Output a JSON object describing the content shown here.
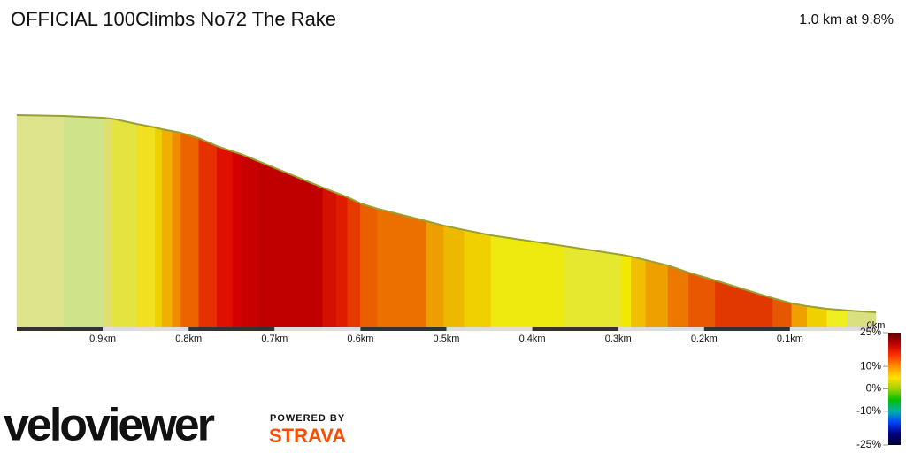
{
  "chart_data": {
    "type": "gradient-profile",
    "title": "OFFICIAL 100Climbs No72 The Rake",
    "subtitle": "1.0 km at 9.8%",
    "x": [
      1.0,
      0.945,
      0.899,
      0.889,
      0.86,
      0.839,
      0.831,
      0.819,
      0.809,
      0.788,
      0.767,
      0.749,
      0.739,
      0.719,
      0.644,
      0.628,
      0.615,
      0.6,
      0.58,
      0.523,
      0.503,
      0.479,
      0.448,
      0.363,
      0.296,
      0.285,
      0.268,
      0.242,
      0.218,
      0.187,
      0.12,
      0.098,
      0.08,
      0.057,
      0.033,
      0
    ],
    "y": [
      92.2,
      91.8,
      90.9,
      90.5,
      88.0,
      86.4,
      85.6,
      84.7,
      83.9,
      81.4,
      77.7,
      75.2,
      74.0,
      70.7,
      58.3,
      55.8,
      53.8,
      50.9,
      48.4,
      42.6,
      40.5,
      38.5,
      36.0,
      31.0,
      26.9,
      26.1,
      24.4,
      21.9,
      18.6,
      14.9,
      6.6,
      4.2,
      2.9,
      1.7,
      0.9,
      0
    ],
    "band_colors": [
      "#dde48c",
      "#cfe38a",
      "#dde070",
      "#e3e440",
      "#f0e020",
      "#f0d000",
      "#f0b000",
      "#f08c00",
      "#ec6400",
      "#e63000",
      "#e01000",
      "#d40000",
      "#c80000",
      "#c00000",
      "#d41000",
      "#e01c00",
      "#e63a00",
      "#ea6000",
      "#ec7000",
      "#eca000",
      "#eeb800",
      "#f0d000",
      "#eeea10",
      "#e6e830",
      "#f2e800",
      "#f0c000",
      "#eea000",
      "#ec7800",
      "#e85800",
      "#e03800",
      "#e65800",
      "#eea000",
      "#f0d000",
      "#eeee20",
      "#d8e080"
    ],
    "xlim": [
      1.0,
      0
    ],
    "ylim": [
      -7,
      92.2
    ],
    "xticks": [
      {
        "value": 0.9,
        "label": "0.9km"
      },
      {
        "value": 0.8,
        "label": "0.8km"
      },
      {
        "value": 0.7,
        "label": "0.7km"
      },
      {
        "value": 0.6,
        "label": "0.6km"
      },
      {
        "value": 0.5,
        "label": "0.5km"
      },
      {
        "value": 0.4,
        "label": "0.4km"
      },
      {
        "value": 0.3,
        "label": "0.3km"
      },
      {
        "value": 0.2,
        "label": "0.2km"
      },
      {
        "value": 0.1,
        "label": "0.1km"
      },
      {
        "value": 0,
        "label": "0km"
      }
    ],
    "colorbar": {
      "lim": [
        -25,
        25
      ],
      "ticks": [
        {
          "value": 25,
          "label": "25%"
        },
        {
          "value": 10,
          "label": "10%"
        },
        {
          "value": 0,
          "label": "0%"
        },
        {
          "value": -10,
          "label": "-10%"
        },
        {
          "value": -25,
          "label": "-25%"
        }
      ],
      "colors": [
        "#5a0000",
        "#c00000",
        "#ff3000",
        "#ff9000",
        "#ffe000",
        "#a0d000",
        "#00c000",
        "#00b0b0",
        "#0040ff",
        "#000080",
        "#000030"
      ]
    }
  },
  "branding": {
    "logo": "veloviewer",
    "powered_by": "POWERED BY",
    "partner": "STRAVA"
  }
}
